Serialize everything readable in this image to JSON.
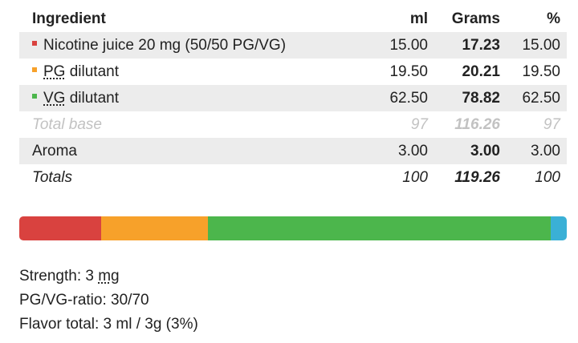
{
  "table": {
    "header": [
      "Ingredient",
      "ml",
      "Grams",
      "%"
    ],
    "rows": [
      {
        "name": "Nicotine juice 20 mg (50/50 PG/VG)",
        "ml": "15.00",
        "grams": "17.23",
        "pct": "15.00",
        "color": "#d9423f"
      },
      {
        "abbr": "PG",
        "name": "dilutant",
        "ml": "19.50",
        "grams": "20.21",
        "pct": "19.50",
        "color": "#f7a12a"
      },
      {
        "abbr": "VG",
        "name": "dilutant",
        "ml": "62.50",
        "grams": "78.82",
        "pct": "62.50",
        "color": "#4cb64c"
      },
      {
        "name": "Total base",
        "ml": "97",
        "grams": "116.26",
        "pct": "97"
      },
      {
        "name": "Aroma",
        "ml": "3.00",
        "grams": "3.00",
        "pct": "3.00",
        "color": "#3ab0d6"
      },
      {
        "name": "Totals",
        "ml": "100",
        "grams": "119.26",
        "pct": "100"
      }
    ]
  },
  "summary": {
    "strength_label": "Strength: 3",
    "strength_unit": "mg",
    "ratio": "PG/VG-ratio: 30/70",
    "flavor": "Flavor total: 3 ml / 3g (3%)"
  }
}
